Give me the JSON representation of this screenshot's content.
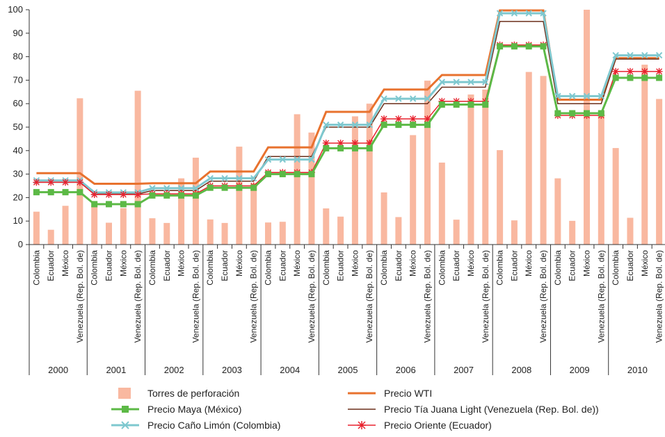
{
  "chart_data": {
    "type": "bar",
    "y_range": [
      0,
      100
    ],
    "y_ticks": [
      "0",
      "10",
      "20",
      "30",
      "40",
      "50",
      "60",
      "70",
      "80",
      "90",
      "100"
    ],
    "grid": false,
    "legend_position": "bottom",
    "years": [
      "2000",
      "2001",
      "2002",
      "2003",
      "2004",
      "2005",
      "2006",
      "2007",
      "2008",
      "2009",
      "2010"
    ],
    "countries": [
      "Colombia",
      "Ecuador",
      "México",
      "Venezuela (Rep. Bol. de)"
    ],
    "bar_series": {
      "name": "Torres de perforación",
      "color": "#f9b8a0",
      "values": [
        [
          14,
          6.3,
          16.5,
          62.3
        ],
        [
          16.5,
          9.3,
          15.5,
          65.5
        ],
        [
          11.2,
          9.2,
          28.2,
          37.0
        ],
        [
          10.7,
          9.2,
          41.7,
          26.0
        ],
        [
          9.4,
          9.7,
          55.5,
          47.7
        ],
        [
          15.4,
          11.9,
          54.6,
          60.0
        ],
        [
          22.2,
          11.7,
          46.6,
          69.8
        ],
        [
          34.9,
          10.6,
          63.9,
          66.0
        ],
        [
          40.2,
          10.3,
          73.5,
          71.8
        ],
        [
          28.2,
          10.1,
          100.0,
          57.0
        ],
        [
          41.1,
          11.4,
          76.6,
          62.0
        ]
      ]
    },
    "line_series": [
      {
        "name": "Precio WTI",
        "color": "#e8722e",
        "width": 3,
        "marker": "none",
        "values": [
          30.4,
          25.9,
          26.1,
          31.1,
          41.4,
          56.5,
          66.0,
          72.2,
          99.7,
          61.7,
          79.4
        ]
      },
      {
        "name": "Precio Tía Juana Light (Venezuela (Rep. Bol. de))",
        "color": "#6b2e1a",
        "width": 1.5,
        "marker": "none",
        "values": [
          26.5,
          21.5,
          23.0,
          27.0,
          37.5,
          50.0,
          60.0,
          67.0,
          95.0,
          60.0,
          79.0
        ]
      },
      {
        "name": "Precio  Caño Limón (Colombia)",
        "color": "#7ec8cf",
        "width": 3,
        "marker": "x",
        "values": [
          27.3,
          22.2,
          24.0,
          28.2,
          36.2,
          51.0,
          62.1,
          69.2,
          98.5,
          63.2,
          80.6
        ]
      },
      {
        "name": "Precio Oriente (Ecuador)",
        "color": "#e8222e",
        "width": 1.5,
        "marker": "star",
        "values": [
          26.5,
          21.3,
          21.6,
          25.0,
          30.7,
          43.2,
          53.5,
          61.0,
          85.0,
          55.0,
          73.7
        ]
      },
      {
        "name": "Precio Maya (México)",
        "color": "#5cb946",
        "width": 3,
        "marker": "square",
        "values": [
          22.3,
          17.2,
          20.9,
          24.2,
          30.0,
          41.0,
          51.0,
          59.6,
          84.4,
          55.9,
          71.0
        ]
      }
    ]
  },
  "legend": [
    {
      "label": "Torres de perforación",
      "color": "#f9b8a0",
      "kind": "bar"
    },
    {
      "label": "Precio WTI",
      "color": "#e8722e",
      "kind": "line-thick"
    },
    {
      "label": "Precio Maya (México)",
      "color": "#5cb946",
      "kind": "line-square"
    },
    {
      "label": "Precio Tía Juana Light (Venezuela (Rep. Bol. de))",
      "color": "#6b2e1a",
      "kind": "line-thin"
    },
    {
      "label": "Precio  Caño Limón (Colombia)",
      "color": "#7ec8cf",
      "kind": "line-x"
    },
    {
      "label": "Precio Oriente (Ecuador)",
      "color": "#e8222e",
      "kind": "line-star"
    }
  ]
}
